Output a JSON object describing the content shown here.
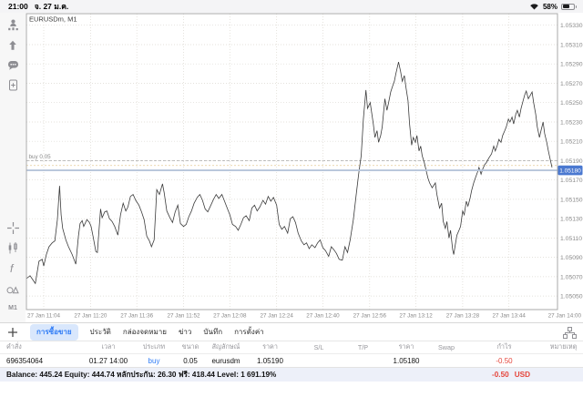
{
  "status_bar": {
    "time": "21:00",
    "date": "จ. 27 ม.ค.",
    "battery": "58%"
  },
  "sidebar": {
    "timeframe": "M1"
  },
  "tabs": {
    "items": [
      "การซื้อขาย",
      "ประวัติ",
      "กล่องจดหมาย",
      "ข่าว",
      "บันทึก",
      "การตั้งค่า"
    ],
    "selected": 0
  },
  "positions": {
    "columns": [
      "คำสั่ง",
      "เวลา",
      "ประเภท",
      "ขนาด",
      "สัญลักษณ์",
      "ราคา",
      "S/L",
      "T/P",
      "ราคา",
      "Swap",
      "กำไร",
      "หมายเหตุ"
    ],
    "rows": [
      {
        "order": "696354064",
        "time": "01.27 14:00",
        "type": "buy",
        "volume": "0.05",
        "symbol": "eurusdm",
        "price_open": "1.05190",
        "sl": "",
        "tp": "",
        "price_current": "1.05180",
        "swap": "",
        "profit": "-0.50",
        "comment": ""
      }
    ]
  },
  "account": {
    "summary": "Balance: 445.24 Equity: 444.74 หลักประกัน: 26.30 ฟรี: 418.44 Level: 1 691.19%",
    "profit": "-0.50",
    "currency": "USD"
  },
  "chart_data": {
    "type": "line",
    "title": "EURUSDm, M1",
    "symbol": "EURUSDm",
    "timeframe": "M1",
    "position_label": "buy 0.05",
    "ylim": [
      1.05036,
      1.05342
    ],
    "y_ticks": [
      1.0533,
      1.0531,
      1.0529,
      1.0527,
      1.0525,
      1.0523,
      1.0521,
      1.0519,
      1.0517,
      1.0515,
      1.0513,
      1.0511,
      1.0509,
      1.0507,
      1.0505
    ],
    "x_ticks": [
      {
        "label": "27 Jan 11:04",
        "f": 0.033
      },
      {
        "label": "27 Jan 11:20",
        "f": 0.122
      },
      {
        "label": "27 Jan 11:36",
        "f": 0.21
      },
      {
        "label": "27 Jan 11:52",
        "f": 0.299
      },
      {
        "label": "27 Jan 12:08",
        "f": 0.387
      },
      {
        "label": "27 Jan 12:24",
        "f": 0.476
      },
      {
        "label": "27 Jan 12:40",
        "f": 0.564
      },
      {
        "label": "27 Jan 12:56",
        "f": 0.653
      },
      {
        "label": "27 Jan 13:12",
        "f": 0.741
      },
      {
        "label": "27 Jan 13:28",
        "f": 0.83
      },
      {
        "label": "27 Jan 13:44",
        "f": 0.918
      },
      {
        "label": "27 Jan 14:00",
        "f": 1.024
      }
    ],
    "lines": {
      "position_buy": 1.0519,
      "ask": 1.05185,
      "bid": 1.0518
    },
    "series": [
      {
        "name": "EURUSDm",
        "points": [
          [
            0.0,
            1.05068
          ],
          [
            0.007,
            1.05071
          ],
          [
            0.012,
            1.05067
          ],
          [
            0.017,
            1.05063
          ],
          [
            0.024,
            1.05086
          ],
          [
            0.03,
            1.05088
          ],
          [
            0.033,
            1.05081
          ],
          [
            0.038,
            1.05093
          ],
          [
            0.043,
            1.05101
          ],
          [
            0.049,
            1.05105
          ],
          [
            0.054,
            1.05107
          ],
          [
            0.059,
            1.05129
          ],
          [
            0.063,
            1.05164
          ],
          [
            0.066,
            1.05134
          ],
          [
            0.069,
            1.0512
          ],
          [
            0.075,
            1.05108
          ],
          [
            0.08,
            1.05101
          ],
          [
            0.087,
            1.05093
          ],
          [
            0.094,
            1.05083
          ],
          [
            0.099,
            1.05112
          ],
          [
            0.102,
            1.05125
          ],
          [
            0.106,
            1.05128
          ],
          [
            0.109,
            1.05122
          ],
          [
            0.115,
            1.05129
          ],
          [
            0.12,
            1.05126
          ],
          [
            0.123,
            1.05122
          ],
          [
            0.127,
            1.05111
          ],
          [
            0.132,
            1.05096
          ],
          [
            0.135,
            1.05095
          ],
          [
            0.141,
            1.0514
          ],
          [
            0.144,
            1.05131
          ],
          [
            0.149,
            1.05137
          ],
          [
            0.153,
            1.05138
          ],
          [
            0.158,
            1.0513
          ],
          [
            0.163,
            1.05127
          ],
          [
            0.168,
            1.05122
          ],
          [
            0.174,
            1.05113
          ],
          [
            0.179,
            1.05134
          ],
          [
            0.184,
            1.05146
          ],
          [
            0.189,
            1.05138
          ],
          [
            0.193,
            1.05142
          ],
          [
            0.198,
            1.05153
          ],
          [
            0.203,
            1.05155
          ],
          [
            0.208,
            1.05149
          ],
          [
            0.214,
            1.05144
          ],
          [
            0.219,
            1.05137
          ],
          [
            0.224,
            1.05129
          ],
          [
            0.229,
            1.05112
          ],
          [
            0.234,
            1.05107
          ],
          [
            0.238,
            1.05101
          ],
          [
            0.243,
            1.05108
          ],
          [
            0.248,
            1.0516
          ],
          [
            0.253,
            1.05155
          ],
          [
            0.259,
            1.05166
          ],
          [
            0.262,
            1.05157
          ],
          [
            0.267,
            1.05138
          ],
          [
            0.273,
            1.05131
          ],
          [
            0.278,
            1.05126
          ],
          [
            0.283,
            1.05137
          ],
          [
            0.288,
            1.05144
          ],
          [
            0.293,
            1.05125
          ],
          [
            0.299,
            1.05122
          ],
          [
            0.304,
            1.05124
          ],
          [
            0.309,
            1.05132
          ],
          [
            0.314,
            1.05138
          ],
          [
            0.319,
            1.05146
          ],
          [
            0.325,
            1.05152
          ],
          [
            0.33,
            1.05155
          ],
          [
            0.335,
            1.05149
          ],
          [
            0.34,
            1.0514
          ],
          [
            0.345,
            1.05137
          ],
          [
            0.351,
            1.05144
          ],
          [
            0.356,
            1.0515
          ],
          [
            0.361,
            1.05155
          ],
          [
            0.366,
            1.05151
          ],
          [
            0.372,
            1.05155
          ],
          [
            0.377,
            1.05148
          ],
          [
            0.382,
            1.05141
          ],
          [
            0.387,
            1.05134
          ],
          [
            0.392,
            1.05124
          ],
          [
            0.398,
            1.05122
          ],
          [
            0.403,
            1.05118
          ],
          [
            0.408,
            1.05124
          ],
          [
            0.413,
            1.05131
          ],
          [
            0.418,
            1.05133
          ],
          [
            0.424,
            1.05128
          ],
          [
            0.429,
            1.05141
          ],
          [
            0.434,
            1.05144
          ],
          [
            0.439,
            1.05138
          ],
          [
            0.444,
            1.05142
          ],
          [
            0.45,
            1.05149
          ],
          [
            0.455,
            1.05145
          ],
          [
            0.46,
            1.05153
          ],
          [
            0.465,
            1.05148
          ],
          [
            0.47,
            1.05152
          ],
          [
            0.476,
            1.05144
          ],
          [
            0.481,
            1.05124
          ],
          [
            0.486,
            1.05119
          ],
          [
            0.491,
            1.05122
          ],
          [
            0.497,
            1.05115
          ],
          [
            0.502,
            1.0513
          ],
          [
            0.507,
            1.05132
          ],
          [
            0.512,
            1.05126
          ],
          [
            0.517,
            1.05115
          ],
          [
            0.523,
            1.05107
          ],
          [
            0.528,
            1.05103
          ],
          [
            0.533,
            1.05105
          ],
          [
            0.538,
            1.05099
          ],
          [
            0.543,
            1.05103
          ],
          [
            0.549,
            1.051
          ],
          [
            0.554,
            1.05105
          ],
          [
            0.559,
            1.05108
          ],
          [
            0.564,
            1.051
          ],
          [
            0.569,
            1.05097
          ],
          [
            0.575,
            1.05091
          ],
          [
            0.58,
            1.05101
          ],
          [
            0.585,
            1.05098
          ],
          [
            0.59,
            1.05094
          ],
          [
            0.595,
            1.05088
          ],
          [
            0.601,
            1.05087
          ],
          [
            0.606,
            1.05101
          ],
          [
            0.611,
            1.05095
          ],
          [
            0.616,
            1.05108
          ],
          [
            0.622,
            1.05129
          ],
          [
            0.627,
            1.05153
          ],
          [
            0.632,
            1.05176
          ],
          [
            0.637,
            1.05195
          ],
          [
            0.641,
            1.05233
          ],
          [
            0.646,
            1.05263
          ],
          [
            0.649,
            1.05244
          ],
          [
            0.654,
            1.0525
          ],
          [
            0.66,
            1.05228
          ],
          [
            0.663,
            1.05214
          ],
          [
            0.667,
            1.05221
          ],
          [
            0.67,
            1.05209
          ],
          [
            0.674,
            1.05216
          ],
          [
            0.677,
            1.05225
          ],
          [
            0.682,
            1.05254
          ],
          [
            0.686,
            1.05242
          ],
          [
            0.689,
            1.0525
          ],
          [
            0.693,
            1.05261
          ],
          [
            0.696,
            1.05266
          ],
          [
            0.7,
            1.05272
          ],
          [
            0.703,
            1.0528
          ],
          [
            0.708,
            1.05292
          ],
          [
            0.712,
            1.05282
          ],
          [
            0.715,
            1.05272
          ],
          [
            0.719,
            1.05278
          ],
          [
            0.722,
            1.05266
          ],
          [
            0.726,
            1.05252
          ],
          [
            0.729,
            1.05228
          ],
          [
            0.733,
            1.05206
          ],
          [
            0.736,
            1.05214
          ],
          [
            0.74,
            1.05209
          ],
          [
            0.743,
            1.05216
          ],
          [
            0.747,
            1.052
          ],
          [
            0.75,
            1.05205
          ],
          [
            0.753,
            1.05195
          ],
          [
            0.757,
            1.05188
          ],
          [
            0.76,
            1.05181
          ],
          [
            0.764,
            1.05172
          ],
          [
            0.767,
            1.05167
          ],
          [
            0.772,
            1.05162
          ],
          [
            0.778,
            1.05167
          ],
          [
            0.781,
            1.05155
          ],
          [
            0.786,
            1.05141
          ],
          [
            0.79,
            1.05146
          ],
          [
            0.793,
            1.05127
          ],
          [
            0.797,
            1.0512
          ],
          [
            0.8,
            1.05127
          ],
          [
            0.804,
            1.0511
          ],
          [
            0.807,
            1.05118
          ],
          [
            0.811,
            1.05098
          ],
          [
            0.813,
            1.05093
          ],
          [
            0.816,
            1.05103
          ],
          [
            0.819,
            1.05113
          ],
          [
            0.823,
            1.05118
          ],
          [
            0.826,
            1.05122
          ],
          [
            0.83,
            1.05138
          ],
          [
            0.833,
            1.05134
          ],
          [
            0.837,
            1.05148
          ],
          [
            0.84,
            1.05143
          ],
          [
            0.844,
            1.05151
          ],
          [
            0.847,
            1.05159
          ],
          [
            0.851,
            1.05167
          ],
          [
            0.854,
            1.05172
          ],
          [
            0.858,
            1.05178
          ],
          [
            0.861,
            1.05183
          ],
          [
            0.865,
            1.05176
          ],
          [
            0.868,
            1.05181
          ],
          [
            0.872,
            1.05186
          ],
          [
            0.875,
            1.05188
          ],
          [
            0.88,
            1.05193
          ],
          [
            0.885,
            1.05197
          ],
          [
            0.889,
            1.05205
          ],
          [
            0.892,
            1.052
          ],
          [
            0.896,
            1.05206
          ],
          [
            0.899,
            1.05212
          ],
          [
            0.903,
            1.05209
          ],
          [
            0.906,
            1.05216
          ],
          [
            0.91,
            1.05221
          ],
          [
            0.913,
            1.05225
          ],
          [
            0.917,
            1.05233
          ],
          [
            0.92,
            1.0523
          ],
          [
            0.924,
            1.05235
          ],
          [
            0.927,
            1.05228
          ],
          [
            0.931,
            1.05238
          ],
          [
            0.934,
            1.05242
          ],
          [
            0.938,
            1.05235
          ],
          [
            0.941,
            1.05244
          ],
          [
            0.944,
            1.0525
          ],
          [
            0.948,
            1.05258
          ],
          [
            0.951,
            1.05262
          ],
          [
            0.955,
            1.05254
          ],
          [
            0.958,
            1.05257
          ],
          [
            0.962,
            1.05261
          ],
          [
            0.965,
            1.0525
          ],
          [
            0.969,
            1.05238
          ],
          [
            0.972,
            1.05225
          ],
          [
            0.976,
            1.05214
          ],
          [
            0.979,
            1.05221
          ],
          [
            0.983,
            1.0523
          ],
          [
            0.986,
            1.05218
          ],
          [
            0.99,
            1.05209
          ],
          [
            0.993,
            1.052
          ],
          [
            0.997,
            1.0519
          ],
          [
            1.0,
            1.05183
          ]
        ]
      }
    ]
  }
}
